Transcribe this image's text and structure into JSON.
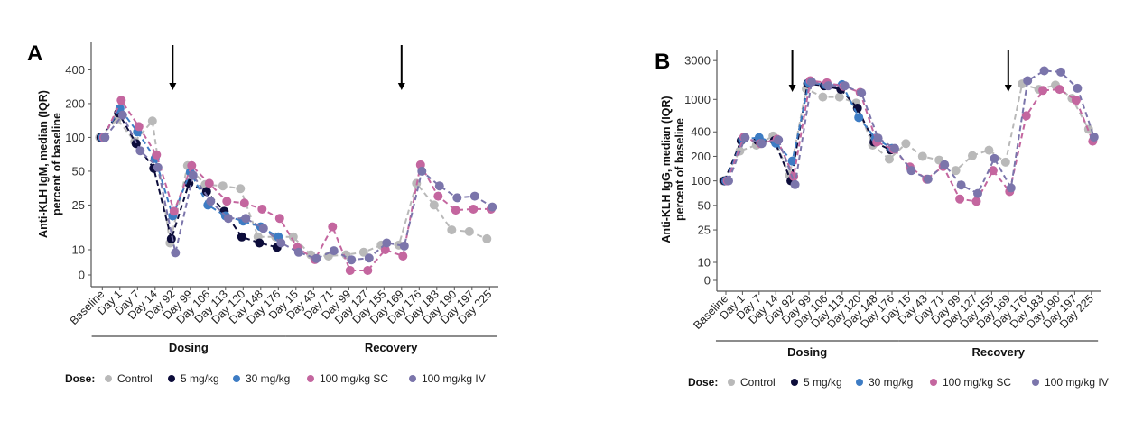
{
  "chart_data": [
    {
      "type": "line",
      "panel_label": "A",
      "ylabel_line1": "Anti-KLH IgM, median (IQR)",
      "ylabel_line2": "percent of baseline",
      "y_scale": "pseudo-log",
      "y_ticks": [
        0,
        10,
        25,
        50,
        100,
        200,
        400
      ],
      "categories": [
        "Baseline",
        "Day 1",
        "Day 7",
        "Day 14",
        "Day 92",
        "Day 99",
        "Day 106",
        "Day 113",
        "Day 120",
        "Day 148",
        "Day 176",
        "Day 15",
        "Day 43",
        "Day 71",
        "Day 99",
        "Day 127",
        "Day 155",
        "Day 169",
        "Day 176",
        "Day 183",
        "Day 190",
        "Day 197",
        "Day 225"
      ],
      "groups": [
        {
          "label": "Dosing",
          "from": 0,
          "to": 10
        },
        {
          "label": "Recovery",
          "from": 11,
          "to": 22
        }
      ],
      "arrows_at": [
        4,
        17
      ],
      "grid": false,
      "series": [
        {
          "name": "Control",
          "values": [
            100,
            146,
            92,
            140,
            11.5,
            56,
            38,
            37,
            35,
            13,
            13,
            13,
            8,
            7.5,
            8,
            9,
            11,
            11,
            39,
            25,
            15,
            14.5,
            12.5
          ]
        },
        {
          "name": "5 mg/kg",
          "values": [
            100,
            165,
            88,
            53,
            12.5,
            39,
            33,
            22,
            13,
            11.5,
            10.5,
            null,
            null,
            null,
            null,
            null,
            null,
            null,
            null,
            null,
            null,
            null,
            null
          ]
        },
        {
          "name": "30 mg/kg",
          "values": [
            100,
            181,
            112,
            65,
            20,
            49,
            25,
            20,
            18,
            16,
            13,
            null,
            null,
            null,
            null,
            null,
            null,
            null,
            null,
            null,
            null,
            null,
            null
          ]
        },
        {
          "name": "100 mg/kg SC",
          "values": [
            100,
            214,
            125,
            70,
            22,
            56,
            39,
            27,
            26,
            23,
            19,
            10.5,
            6.1,
            16,
            1.8,
            1.8,
            10,
            7.5,
            57,
            30,
            22.5,
            23,
            23
          ]
        },
        {
          "name": "100 mg/kg IV",
          "values": [
            100,
            158,
            76,
            54,
            8.8,
            46,
            27,
            19,
            19,
            15.5,
            11.5,
            9,
            6.5,
            9.6,
            6,
            6.7,
            11.5,
            10.8,
            50,
            37,
            29,
            30,
            24
          ]
        }
      ]
    },
    {
      "type": "line",
      "panel_label": "B",
      "ylabel_line1": "Anti-KLH IgG, median (IQR)",
      "ylabel_line2": "percent of baseline",
      "y_scale": "pseudo-log",
      "y_ticks": [
        0,
        10,
        25,
        50,
        100,
        200,
        400,
        1000,
        3000
      ],
      "categories": [
        "Baseline",
        "Day 1",
        "Day 7",
        "Day 14",
        "Day 92",
        "Day 99",
        "Day 106",
        "Day 113",
        "Day 120",
        "Day 148",
        "Day 176",
        "Day 15",
        "Day 43",
        "Day 71",
        "Day 99",
        "Day 127",
        "Day 155",
        "Day 169",
        "Day 176",
        "Day 183",
        "Day 190",
        "Day 197",
        "Day 225"
      ],
      "groups": [
        {
          "label": "Dosing",
          "from": 0,
          "to": 10
        },
        {
          "label": "Recovery",
          "from": 11,
          "to": 22
        }
      ],
      "arrows_at": [
        4,
        17
      ],
      "grid": false,
      "series": [
        {
          "name": "Control",
          "values": [
            100,
            232,
            275,
            355,
            117,
            1350,
            1070,
            1070,
            900,
            275,
            185,
            287,
            200,
            180,
            134,
            204,
            238,
            170,
            1550,
            1330,
            1500,
            1030,
            430
          ]
        },
        {
          "name": "5 mg/kg",
          "values": [
            100,
            312,
            312,
            312,
            100,
            1570,
            1470,
            1330,
            780,
            300,
            240,
            null,
            null,
            null,
            null,
            null,
            null,
            null,
            null,
            null,
            null,
            null,
            null
          ]
        },
        {
          "name": "30 mg/kg",
          "values": [
            100,
            325,
            340,
            290,
            175,
            1600,
            1520,
            1520,
            600,
            335,
            250,
            null,
            null,
            null,
            null,
            null,
            null,
            null,
            null,
            null,
            null,
            null,
            null
          ]
        },
        {
          "name": "100 mg/kg SC",
          "values": [
            100,
            345,
            287,
            325,
            113,
            1700,
            1600,
            1450,
            1220,
            300,
            245,
            148,
            105,
            150,
            60,
            56,
            134,
            74,
            630,
            1290,
            1330,
            980,
            307
          ]
        },
        {
          "name": "100 mg/kg IV",
          "values": [
            100,
            340,
            287,
            318,
            90,
            1640,
            1470,
            1470,
            1200,
            335,
            250,
            134,
            105,
            158,
            89,
            70,
            188,
            82,
            1700,
            2250,
            2170,
            1370,
            345
          ]
        }
      ]
    }
  ],
  "legend": {
    "title": "Dose:",
    "items": [
      "Control",
      "5 mg/kg",
      "30 mg/kg",
      "100 mg/kg SC",
      "100 mg/kg IV"
    ],
    "placement": "bottom"
  },
  "colors": {
    "Control": "#b9b9b9",
    "5 mg/kg": "#0c0c3a",
    "30 mg/kg": "#3d7cc4",
    "100 mg/kg SC": "#c4669f",
    "100 mg/kg IV": "#7b75ab",
    "axis": "#555555",
    "arrow": "#000000"
  }
}
